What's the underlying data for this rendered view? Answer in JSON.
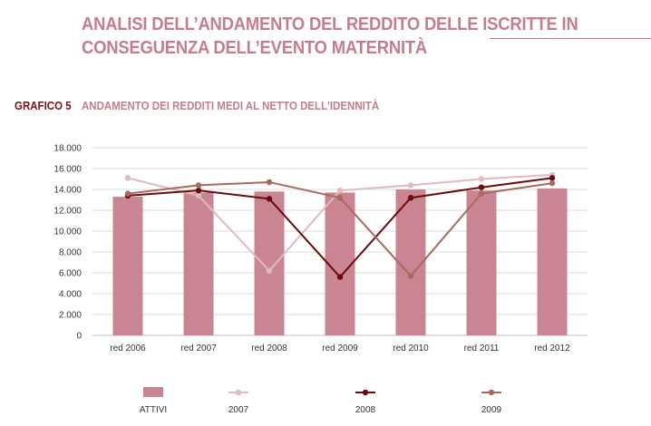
{
  "header": {
    "title": "ANALISI DELL’ANDAMENTO DEL REDDITO DELLE ISCRITTE IN CONSEGUENZA DELL’EVENTO MATERNITÀ"
  },
  "figure": {
    "label": "GRAFICO 5",
    "caption": "ANDAMENTO DEI REDDITI MEDI AL NETTO DELL'IDENNITÀ"
  },
  "chart_data": {
    "type": "bar",
    "categories": [
      "red 2006",
      "red 2007",
      "red 2008",
      "red 2009",
      "red 2010",
      "red 2011",
      "red 2012"
    ],
    "ylim": [
      0,
      18000
    ],
    "yticks": [
      0,
      2000,
      4000,
      6000,
      8000,
      10000,
      12000,
      14000,
      16000,
      18000
    ],
    "ytick_labels": [
      "0",
      "2.000",
      "4.000",
      "6.000",
      "8.000",
      "10.000",
      "12.000",
      "14.000",
      "16.000",
      "18.000"
    ],
    "grid": true,
    "legend_position": "bottom",
    "series": [
      {
        "name": "ATTIVI",
        "kind": "bar",
        "color": "#c98591",
        "values": [
          13300,
          13700,
          13800,
          13700,
          14000,
          13900,
          14100
        ]
      },
      {
        "name": "2007",
        "kind": "line",
        "color": "#e2b9c0",
        "values": [
          15100,
          13400,
          6200,
          13900,
          14400,
          15000,
          15400
        ]
      },
      {
        "name": "2008",
        "kind": "line",
        "color": "#6b0a0a",
        "values": [
          13400,
          13900,
          13100,
          5600,
          13200,
          14200,
          15100
        ]
      },
      {
        "name": "2009",
        "kind": "line",
        "color": "#a86a5e",
        "values": [
          13600,
          14400,
          14700,
          13200,
          5700,
          13600,
          14600
        ]
      }
    ]
  }
}
